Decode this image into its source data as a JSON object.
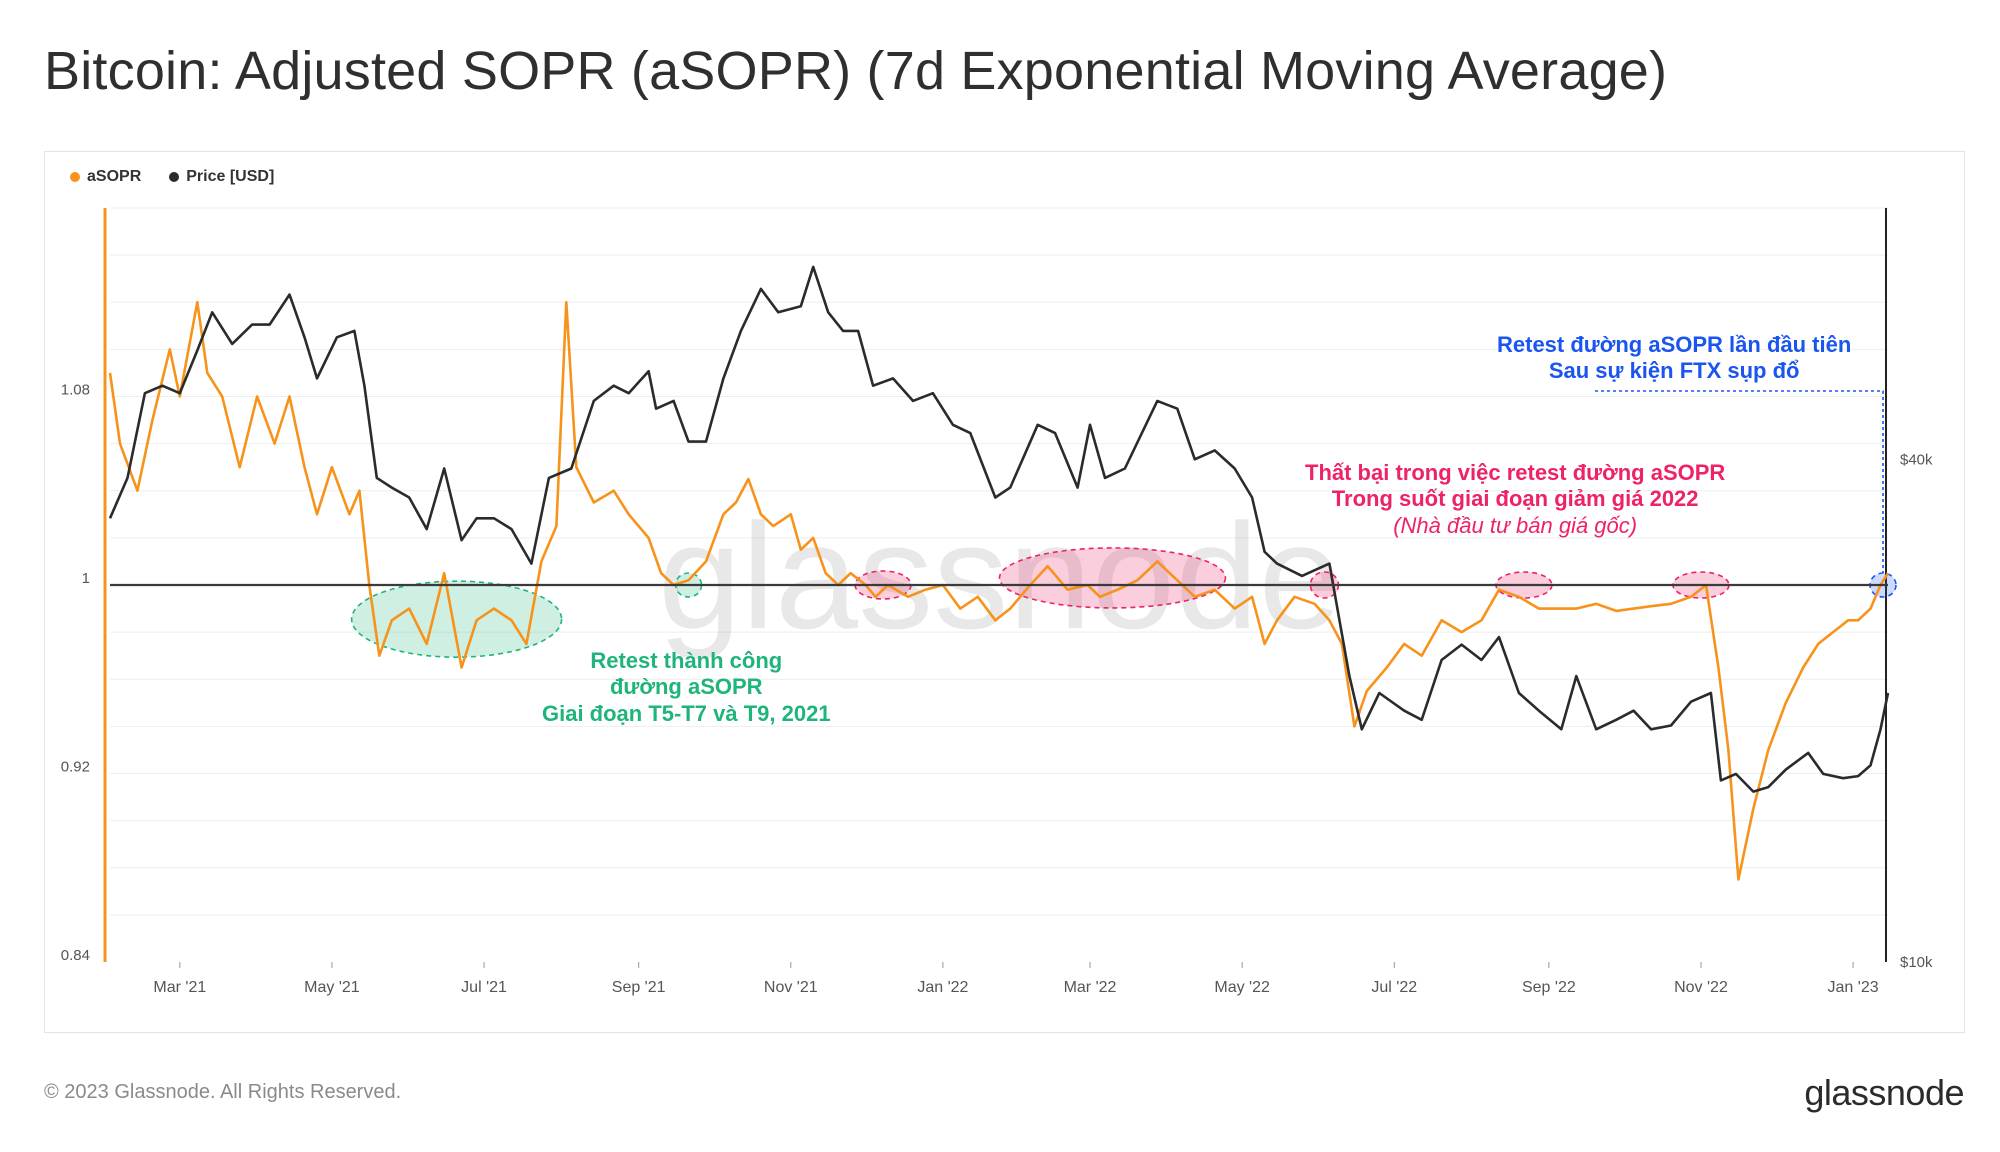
{
  "title": "Bitcoin: Adjusted SOPR (aSOPR) (7d Exponential Moving Average)",
  "legend": [
    {
      "label": "aSOPR",
      "color": "#f7931a"
    },
    {
      "label": "Price [USD]",
      "color": "#2b2b2b"
    }
  ],
  "watermark": "glassnode",
  "footer": {
    "copyright": "© 2023 Glassnode. All Rights Reserved.",
    "logo": "glassnode"
  },
  "annotations": {
    "green": [
      "Retest thành công",
      "đường aSOPR",
      "Giai đoạn T5-T7 và T9, 2021"
    ],
    "pink": [
      "Thất bại trong việc retest đường aSOPR",
      "Trong suốt giai đoạn giảm giá 2022",
      "(Nhà đầu tư bán giá gốc)"
    ],
    "blue": [
      "Retest đường aSOPR lần đầu tiên",
      "Sau sự kiện FTX sụp đổ"
    ]
  },
  "colors": {
    "asopr": "#f7931a",
    "price": "#2b2b2b",
    "green": "#1fb57a",
    "pink": "#ee2266",
    "blue": "#1a55f0"
  },
  "chart_data": {
    "type": "line",
    "title": "Bitcoin: Adjusted SOPR (aSOPR) (7d Exponential Moving Average)",
    "x_range": [
      "2021-02-01",
      "2023-01-15"
    ],
    "x_ticks": [
      "Mar '21",
      "May '21",
      "Jul '21",
      "Sep '21",
      "Nov '21",
      "Jan '22",
      "Mar '22",
      "May '22",
      "Jul '22",
      "Sep '22",
      "Nov '22",
      "Jan '23"
    ],
    "y_left": {
      "label": "aSOPR",
      "ticks": [
        "0.84",
        "0.92",
        "1",
        "1.08"
      ],
      "range": [
        0.84,
        1.16
      ],
      "reference_line": 1
    },
    "y_right": {
      "label": "Price [USD]",
      "scale": "log",
      "ticks": [
        "$10k",
        "$40k"
      ],
      "range": [
        10000,
        80000
      ]
    },
    "series": [
      {
        "name": "aSOPR",
        "axis": "left",
        "points": [
          [
            "2021-02-01",
            1.09
          ],
          [
            "2021-02-05",
            1.06
          ],
          [
            "2021-02-12",
            1.04
          ],
          [
            "2021-02-18",
            1.07
          ],
          [
            "2021-02-25",
            1.1
          ],
          [
            "2021-03-01",
            1.08
          ],
          [
            "2021-03-08",
            1.12
          ],
          [
            "2021-03-12",
            1.09
          ],
          [
            "2021-03-18",
            1.08
          ],
          [
            "2021-03-25",
            1.05
          ],
          [
            "2021-04-01",
            1.08
          ],
          [
            "2021-04-08",
            1.06
          ],
          [
            "2021-04-14",
            1.08
          ],
          [
            "2021-04-20",
            1.05
          ],
          [
            "2021-04-25",
            1.03
          ],
          [
            "2021-05-01",
            1.05
          ],
          [
            "2021-05-08",
            1.03
          ],
          [
            "2021-05-12",
            1.04
          ],
          [
            "2021-05-16",
            1.0
          ],
          [
            "2021-05-20",
            0.97
          ],
          [
            "2021-05-25",
            0.985
          ],
          [
            "2021-06-01",
            0.99
          ],
          [
            "2021-06-08",
            0.975
          ],
          [
            "2021-06-15",
            1.005
          ],
          [
            "2021-06-22",
            0.965
          ],
          [
            "2021-06-28",
            0.985
          ],
          [
            "2021-07-05",
            0.99
          ],
          [
            "2021-07-12",
            0.985
          ],
          [
            "2021-07-18",
            0.975
          ],
          [
            "2021-07-24",
            1.01
          ],
          [
            "2021-07-30",
            1.025
          ],
          [
            "2021-08-03",
            1.12
          ],
          [
            "2021-08-07",
            1.05
          ],
          [
            "2021-08-14",
            1.035
          ],
          [
            "2021-08-22",
            1.04
          ],
          [
            "2021-08-28",
            1.03
          ],
          [
            "2021-09-05",
            1.02
          ],
          [
            "2021-09-10",
            1.005
          ],
          [
            "2021-09-15",
            1.0
          ],
          [
            "2021-09-21",
            1.002
          ],
          [
            "2021-09-28",
            1.01
          ],
          [
            "2021-10-05",
            1.03
          ],
          [
            "2021-10-10",
            1.035
          ],
          [
            "2021-10-15",
            1.045
          ],
          [
            "2021-10-20",
            1.03
          ],
          [
            "2021-10-25",
            1.025
          ],
          [
            "2021-11-01",
            1.03
          ],
          [
            "2021-11-05",
            1.015
          ],
          [
            "2021-11-10",
            1.02
          ],
          [
            "2021-11-15",
            1.005
          ],
          [
            "2021-11-20",
            1.0
          ],
          [
            "2021-11-25",
            1.005
          ],
          [
            "2021-12-01",
            1.0
          ],
          [
            "2021-12-05",
            0.995
          ],
          [
            "2021-12-10",
            1.0
          ],
          [
            "2021-12-18",
            0.995
          ],
          [
            "2021-12-25",
            0.998
          ],
          [
            "2022-01-01",
            1.0
          ],
          [
            "2022-01-08",
            0.99
          ],
          [
            "2022-01-15",
            0.995
          ],
          [
            "2022-01-22",
            0.985
          ],
          [
            "2022-01-28",
            0.99
          ],
          [
            "2022-02-05",
            1.0
          ],
          [
            "2022-02-12",
            1.008
          ],
          [
            "2022-02-20",
            0.998
          ],
          [
            "2022-02-28",
            1.0
          ],
          [
            "2022-03-05",
            0.995
          ],
          [
            "2022-03-12",
            0.998
          ],
          [
            "2022-03-20",
            1.002
          ],
          [
            "2022-03-28",
            1.01
          ],
          [
            "2022-04-05",
            1.002
          ],
          [
            "2022-04-12",
            0.995
          ],
          [
            "2022-04-20",
            0.998
          ],
          [
            "2022-04-28",
            0.99
          ],
          [
            "2022-05-05",
            0.995
          ],
          [
            "2022-05-10",
            0.975
          ],
          [
            "2022-05-15",
            0.985
          ],
          [
            "2022-05-22",
            0.995
          ],
          [
            "2022-05-30",
            0.992
          ],
          [
            "2022-06-05",
            0.985
          ],
          [
            "2022-06-10",
            0.975
          ],
          [
            "2022-06-15",
            0.94
          ],
          [
            "2022-06-20",
            0.955
          ],
          [
            "2022-06-28",
            0.965
          ],
          [
            "2022-07-05",
            0.975
          ],
          [
            "2022-07-12",
            0.97
          ],
          [
            "2022-07-20",
            0.985
          ],
          [
            "2022-07-28",
            0.98
          ],
          [
            "2022-08-05",
            0.985
          ],
          [
            "2022-08-12",
            0.998
          ],
          [
            "2022-08-20",
            0.995
          ],
          [
            "2022-08-28",
            0.99
          ],
          [
            "2022-09-05",
            0.99
          ],
          [
            "2022-09-12",
            0.99
          ],
          [
            "2022-09-20",
            0.992
          ],
          [
            "2022-09-28",
            0.989
          ],
          [
            "2022-10-05",
            0.99
          ],
          [
            "2022-10-12",
            0.991
          ],
          [
            "2022-10-20",
            0.992
          ],
          [
            "2022-10-28",
            0.995
          ],
          [
            "2022-11-03",
            1.0
          ],
          [
            "2022-11-08",
            0.965
          ],
          [
            "2022-11-12",
            0.93
          ],
          [
            "2022-11-16",
            0.875
          ],
          [
            "2022-11-22",
            0.905
          ],
          [
            "2022-11-28",
            0.93
          ],
          [
            "2022-12-05",
            0.95
          ],
          [
            "2022-12-12",
            0.965
          ],
          [
            "2022-12-18",
            0.975
          ],
          [
            "2022-12-24",
            0.98
          ],
          [
            "2022-12-30",
            0.985
          ],
          [
            "2023-01-03",
            0.985
          ],
          [
            "2023-01-08",
            0.99
          ],
          [
            "2023-01-12",
            1.0
          ],
          [
            "2023-01-15",
            1.005
          ]
        ]
      },
      {
        "name": "Price [USD]",
        "axis": "right",
        "points": [
          [
            "2021-02-01",
            34000
          ],
          [
            "2021-02-08",
            38000
          ],
          [
            "2021-02-15",
            48000
          ],
          [
            "2021-02-22",
            49000
          ],
          [
            "2021-03-01",
            48000
          ],
          [
            "2021-03-08",
            54000
          ],
          [
            "2021-03-14",
            60000
          ],
          [
            "2021-03-22",
            55000
          ],
          [
            "2021-03-30",
            58000
          ],
          [
            "2021-04-06",
            58000
          ],
          [
            "2021-04-14",
            63000
          ],
          [
            "2021-04-20",
            56000
          ],
          [
            "2021-04-25",
            50000
          ],
          [
            "2021-05-03",
            56000
          ],
          [
            "2021-05-10",
            57000
          ],
          [
            "2021-05-14",
            49000
          ],
          [
            "2021-05-19",
            38000
          ],
          [
            "2021-05-25",
            37000
          ],
          [
            "2021-06-01",
            36000
          ],
          [
            "2021-06-08",
            33000
          ],
          [
            "2021-06-15",
            39000
          ],
          [
            "2021-06-22",
            32000
          ],
          [
            "2021-06-28",
            34000
          ],
          [
            "2021-07-05",
            34000
          ],
          [
            "2021-07-12",
            33000
          ],
          [
            "2021-07-20",
            30000
          ],
          [
            "2021-07-27",
            38000
          ],
          [
            "2021-08-05",
            39000
          ],
          [
            "2021-08-14",
            47000
          ],
          [
            "2021-08-22",
            49000
          ],
          [
            "2021-08-28",
            48000
          ],
          [
            "2021-09-05",
            51000
          ],
          [
            "2021-09-08",
            46000
          ],
          [
            "2021-09-15",
            47000
          ],
          [
            "2021-09-21",
            42000
          ],
          [
            "2021-09-28",
            42000
          ],
          [
            "2021-10-05",
            50000
          ],
          [
            "2021-10-12",
            57000
          ],
          [
            "2021-10-20",
            64000
          ],
          [
            "2021-10-27",
            60000
          ],
          [
            "2021-11-05",
            61000
          ],
          [
            "2021-11-10",
            68000
          ],
          [
            "2021-11-16",
            60000
          ],
          [
            "2021-11-22",
            57000
          ],
          [
            "2021-11-28",
            57000
          ],
          [
            "2021-12-04",
            49000
          ],
          [
            "2021-12-12",
            50000
          ],
          [
            "2021-12-20",
            47000
          ],
          [
            "2021-12-28",
            48000
          ],
          [
            "2022-01-05",
            44000
          ],
          [
            "2022-01-12",
            43000
          ],
          [
            "2022-01-22",
            36000
          ],
          [
            "2022-01-28",
            37000
          ],
          [
            "2022-02-08",
            44000
          ],
          [
            "2022-02-15",
            43000
          ],
          [
            "2022-02-24",
            37000
          ],
          [
            "2022-03-01",
            44000
          ],
          [
            "2022-03-07",
            38000
          ],
          [
            "2022-03-15",
            39000
          ],
          [
            "2022-03-28",
            47000
          ],
          [
            "2022-04-05",
            46000
          ],
          [
            "2022-04-12",
            40000
          ],
          [
            "2022-04-20",
            41000
          ],
          [
            "2022-04-28",
            39000
          ],
          [
            "2022-05-05",
            36000
          ],
          [
            "2022-05-10",
            31000
          ],
          [
            "2022-05-15",
            30000
          ],
          [
            "2022-05-25",
            29000
          ],
          [
            "2022-06-05",
            30000
          ],
          [
            "2022-06-13",
            22000
          ],
          [
            "2022-06-18",
            19000
          ],
          [
            "2022-06-25",
            21000
          ],
          [
            "2022-07-05",
            20000
          ],
          [
            "2022-07-12",
            19500
          ],
          [
            "2022-07-20",
            23000
          ],
          [
            "2022-07-28",
            24000
          ],
          [
            "2022-08-05",
            23000
          ],
          [
            "2022-08-12",
            24500
          ],
          [
            "2022-08-20",
            21000
          ],
          [
            "2022-08-28",
            20000
          ],
          [
            "2022-09-06",
            19000
          ],
          [
            "2022-09-12",
            22000
          ],
          [
            "2022-09-20",
            19000
          ],
          [
            "2022-09-28",
            19500
          ],
          [
            "2022-10-05",
            20000
          ],
          [
            "2022-10-12",
            19000
          ],
          [
            "2022-10-20",
            19200
          ],
          [
            "2022-10-28",
            20500
          ],
          [
            "2022-11-05",
            21000
          ],
          [
            "2022-11-09",
            16500
          ],
          [
            "2022-11-15",
            16800
          ],
          [
            "2022-11-22",
            16000
          ],
          [
            "2022-11-28",
            16200
          ],
          [
            "2022-12-05",
            17000
          ],
          [
            "2022-12-14",
            17800
          ],
          [
            "2022-12-20",
            16800
          ],
          [
            "2022-12-28",
            16600
          ],
          [
            "2023-01-03",
            16700
          ],
          [
            "2023-01-08",
            17200
          ],
          [
            "2023-01-12",
            19000
          ],
          [
            "2023-01-15",
            21000
          ]
        ]
      }
    ]
  }
}
